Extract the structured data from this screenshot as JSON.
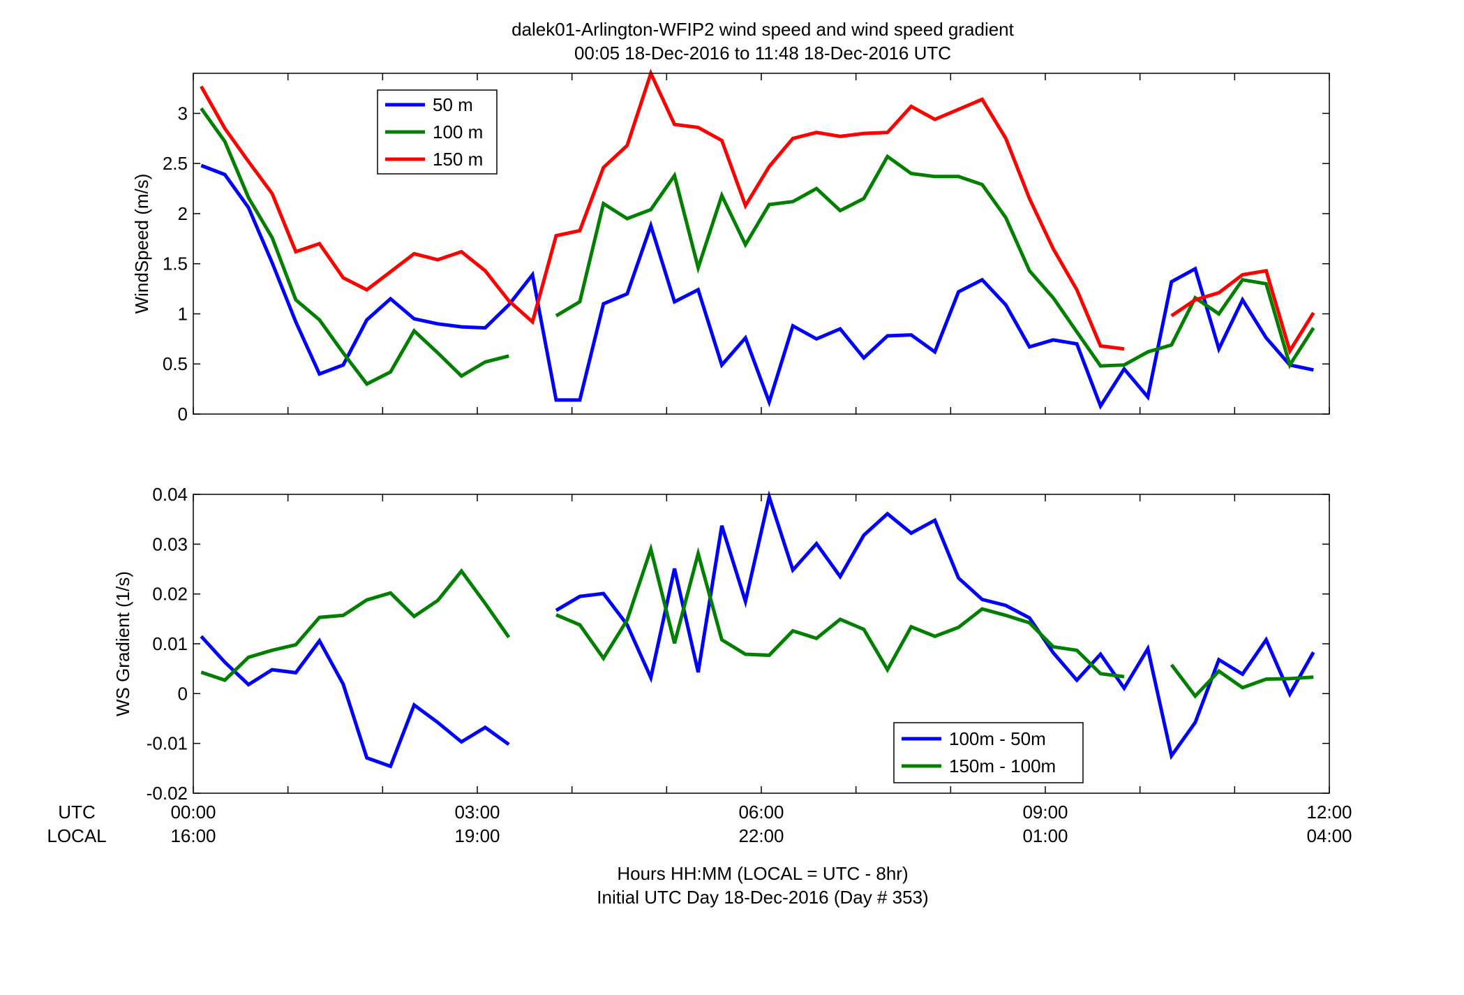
{
  "figure": {
    "title_line1": "dalek01-Arlington-WFIP2  wind speed and wind speed gradient",
    "title_line2": "00:05 18-Dec-2016 to 11:48 18-Dec-2016  UTC",
    "xlabel_line1": "Hours HH:MM  (LOCAL = UTC - 8hr)",
    "xlabel_line2": "Initial UTC Day 18-Dec-2016 (Day # 353)",
    "row_label_utc": "UTC",
    "row_label_local": "LOCAL",
    "x_ticks_utc": [
      "00:00",
      "03:00",
      "06:00",
      "09:00",
      "12:00"
    ],
    "x_ticks_local": [
      "16:00",
      "19:00",
      "22:00",
      "01:00",
      "04:00"
    ]
  },
  "chart_data": [
    {
      "type": "line",
      "ylabel": "WindSpeed (m/s)",
      "xlim": [
        0,
        12
      ],
      "ylim": [
        0,
        3.4
      ],
      "yticks": [
        0,
        0.5,
        1,
        1.5,
        2,
        2.5,
        3
      ],
      "ytick_labels": [
        "0",
        "0.5",
        "1",
        "1.5",
        "2",
        "2.5",
        "3"
      ],
      "xticks": [
        0,
        1,
        2,
        3,
        4,
        5,
        6,
        7,
        8,
        9,
        10,
        11,
        12
      ],
      "grid": false,
      "legend": "top-left",
      "x": [
        0.083,
        0.333,
        0.583,
        0.833,
        1.083,
        1.333,
        1.583,
        1.833,
        2.083,
        2.333,
        2.583,
        2.833,
        3.083,
        3.333,
        3.583,
        3.833,
        4.083,
        4.333,
        4.583,
        4.833,
        5.083,
        5.333,
        5.583,
        5.833,
        6.083,
        6.333,
        6.583,
        6.833,
        7.083,
        7.333,
        7.583,
        7.833,
        8.083,
        8.333,
        8.583,
        8.833,
        9.083,
        9.333,
        9.583,
        9.833,
        10.083,
        10.333,
        10.583,
        10.833,
        11.083,
        11.333,
        11.583,
        11.833
      ],
      "series": [
        {
          "name": "50 m",
          "color": "#0000ff",
          "values": [
            2.48,
            2.39,
            2.06,
            1.51,
            0.92,
            0.4,
            0.49,
            0.94,
            1.15,
            0.95,
            0.9,
            0.87,
            0.86,
            1.09,
            1.39,
            0.14,
            0.14,
            1.1,
            1.2,
            1.88,
            1.12,
            1.24,
            0.49,
            0.76,
            0.12,
            0.88,
            0.75,
            0.85,
            0.56,
            0.78,
            0.79,
            0.62,
            1.22,
            1.34,
            1.09,
            0.67,
            0.74,
            0.7,
            0.08,
            0.45,
            0.17,
            1.32,
            1.45,
            0.65,
            1.14,
            0.76,
            0.49,
            0.44
          ]
        },
        {
          "name": "100 m",
          "color": "#007f00",
          "values": [
            3.05,
            2.72,
            2.16,
            1.76,
            1.14,
            0.94,
            0.61,
            0.3,
            0.42,
            0.83,
            0.61,
            0.38,
            0.52,
            0.58,
            null,
            0.98,
            1.12,
            2.1,
            1.95,
            2.04,
            2.38,
            1.46,
            2.18,
            1.69,
            2.09,
            2.12,
            2.25,
            2.03,
            2.15,
            2.57,
            2.4,
            2.37,
            2.37,
            2.29,
            1.96,
            1.43,
            1.16,
            0.82,
            0.48,
            0.49,
            0.62,
            0.69,
            1.16,
            1.0,
            1.34,
            1.3,
            0.49,
            0.86
          ]
        },
        {
          "name": "150 m",
          "color": "#ff0000",
          "values": [
            3.27,
            2.85,
            2.52,
            2.2,
            1.62,
            1.7,
            1.36,
            1.24,
            1.42,
            1.6,
            1.54,
            1.62,
            1.43,
            1.13,
            0.92,
            1.78,
            1.83,
            2.46,
            2.68,
            3.4,
            2.89,
            2.86,
            2.73,
            2.08,
            2.47,
            2.75,
            2.81,
            2.77,
            2.8,
            2.81,
            3.07,
            2.94,
            3.04,
            3.14,
            2.75,
            2.15,
            1.65,
            1.24,
            0.68,
            0.65,
            null,
            0.98,
            1.14,
            1.21,
            1.39,
            1.43,
            0.63,
            1.01
          ]
        }
      ]
    },
    {
      "type": "line",
      "ylabel": "WS Gradient (1/s)",
      "xlim": [
        0,
        12
      ],
      "ylim": [
        -0.02,
        0.04
      ],
      "yticks": [
        -0.02,
        -0.01,
        0,
        0.01,
        0.02,
        0.03,
        0.04
      ],
      "ytick_labels": [
        "-0.02",
        "-0.01",
        "0",
        "0.01",
        "0.02",
        "0.03",
        "0.04"
      ],
      "xticks": [
        0,
        1,
        2,
        3,
        4,
        5,
        6,
        7,
        8,
        9,
        10,
        11,
        12
      ],
      "grid": false,
      "legend": "bottom-right",
      "x": [
        0.083,
        0.333,
        0.583,
        0.833,
        1.083,
        1.333,
        1.583,
        1.833,
        2.083,
        2.333,
        2.583,
        2.833,
        3.083,
        3.333,
        3.583,
        3.833,
        4.083,
        4.333,
        4.583,
        4.833,
        5.083,
        5.333,
        5.583,
        5.833,
        6.083,
        6.333,
        6.583,
        6.833,
        7.083,
        7.333,
        7.583,
        7.833,
        8.083,
        8.333,
        8.583,
        8.833,
        9.083,
        9.333,
        9.583,
        9.833,
        10.083,
        10.333,
        10.583,
        10.833,
        11.083,
        11.333,
        11.583,
        11.833
      ],
      "series": [
        {
          "name": "100m - 50m",
          "color": "#0000ff",
          "values": [
            0.0115,
            0.0063,
            0.0018,
            0.0048,
            0.0042,
            0.0106,
            0.0019,
            -0.0129,
            -0.0146,
            -0.0023,
            -0.0058,
            -0.0097,
            -0.0068,
            -0.0102,
            null,
            0.0167,
            0.0195,
            0.0201,
            0.0138,
            0.0032,
            0.0251,
            0.0043,
            0.0337,
            0.0185,
            0.0395,
            0.0248,
            0.0301,
            0.0235,
            0.0318,
            0.0361,
            0.0322,
            0.0348,
            0.0232,
            0.0189,
            0.0177,
            0.0152,
            0.0082,
            0.0027,
            0.0079,
            0.0011,
            0.009,
            -0.0125,
            -0.0058,
            0.0068,
            0.0039,
            0.0108,
            -0.0001,
            0.0083
          ]
        },
        {
          "name": "150m - 100m",
          "color": "#007f00",
          "values": [
            0.0043,
            0.0027,
            0.0073,
            0.0087,
            0.0098,
            0.0153,
            0.0157,
            0.0188,
            0.0202,
            0.0155,
            0.0187,
            0.0246,
            0.0181,
            0.0113,
            null,
            0.0158,
            0.0138,
            0.0071,
            0.0148,
            0.029,
            0.0101,
            0.0281,
            0.0108,
            0.0079,
            0.0077,
            0.0126,
            0.0111,
            0.0149,
            0.0129,
            0.0048,
            0.0134,
            0.0115,
            0.0133,
            0.017,
            0.0157,
            0.0142,
            0.0094,
            0.0087,
            0.004,
            0.0034,
            null,
            0.0058,
            -0.0005,
            0.0045,
            0.0012,
            0.0029,
            0.003,
            0.0033
          ]
        }
      ]
    }
  ]
}
